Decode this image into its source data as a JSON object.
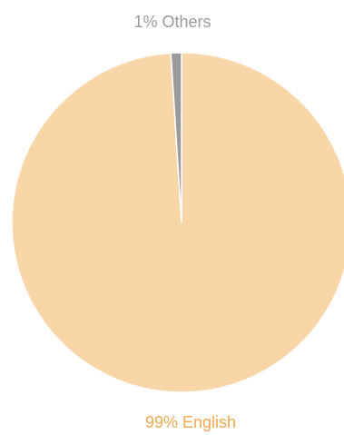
{
  "chart_data": {
    "type": "pie",
    "slices": [
      {
        "label": "English",
        "value": 99,
        "display": "99% English",
        "color": "#f8d6a8",
        "text_color": "#f3a94f"
      },
      {
        "label": "Others",
        "value": 1,
        "display": "1% Others",
        "color": "#9a9a9a",
        "text_color": "#9a9a9a"
      }
    ],
    "legend": "none"
  }
}
